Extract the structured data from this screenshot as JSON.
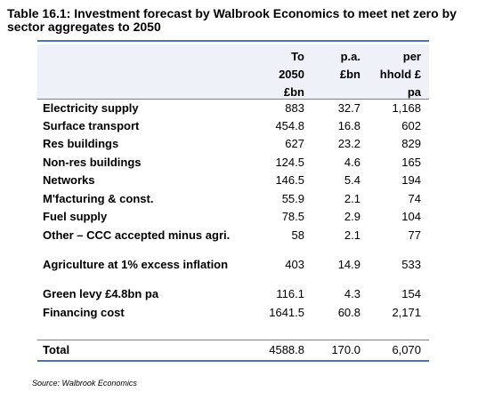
{
  "title": "Table 16.1: Investment forecast by Walbrook Economics to meet net zero by sector aggregates to 2050",
  "headers": {
    "col1": [
      "To",
      "2050",
      "£bn"
    ],
    "col2": [
      "p.a.",
      "£bn"
    ],
    "col3": [
      "per",
      "hhold £",
      "pa"
    ]
  },
  "rows": [
    {
      "label": "Electricity supply",
      "to2050": "883",
      "pa": "32.7",
      "hhold": "1,168"
    },
    {
      "label": "Surface transport",
      "to2050": "454.8",
      "pa": "16.8",
      "hhold": "602"
    },
    {
      "label": "Res buildings",
      "to2050": "627",
      "pa": "23.2",
      "hhold": "829"
    },
    {
      "label": "Non-res buildings",
      "to2050": "124.5",
      "pa": "4.6",
      "hhold": "165"
    },
    {
      "label": "Networks",
      "to2050": "146.5",
      "pa": "5.4",
      "hhold": "194"
    },
    {
      "label": "M'facturing & const.",
      "to2050": "55.9",
      "pa": "2.1",
      "hhold": "74"
    },
    {
      "label": "Fuel supply",
      "to2050": "78.5",
      "pa": "2.9",
      "hhold": "104"
    },
    {
      "label": "Other – CCC accepted minus agri.",
      "to2050": "58",
      "pa": "2.1",
      "hhold": "77"
    },
    {
      "label": "Agriculture at 1% excess inflation",
      "to2050": "403",
      "pa": "14.9",
      "hhold": "533"
    },
    {
      "label": "Green levy £4.8bn pa",
      "to2050": "116.1",
      "pa": "4.3",
      "hhold": "154"
    },
    {
      "label": "Financing cost",
      "to2050": "1641.5",
      "pa": "60.8",
      "hhold": "2,171"
    }
  ],
  "total": {
    "label": "Total",
    "to2050": "4588.8",
    "pa": "170.0",
    "hhold": "6,070"
  },
  "source": "Source: Walbrook Economics",
  "colors": {
    "rule": "#4a74ac",
    "header_bg": "#eef1f7"
  }
}
